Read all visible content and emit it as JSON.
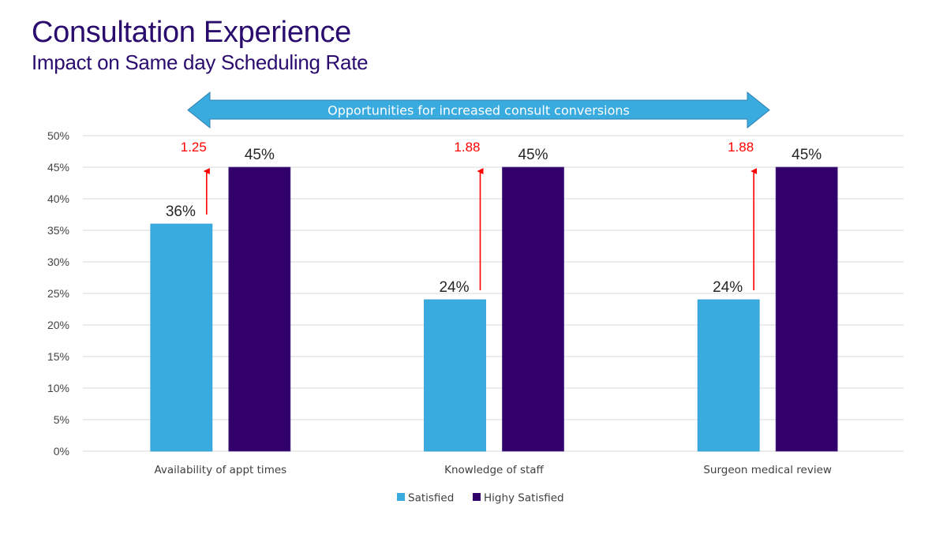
{
  "header": {
    "title": "Consultation Experience",
    "subtitle": "Impact on Same day Scheduling Rate"
  },
  "banner": {
    "label": "Opportunities for increased consult conversions",
    "color": "#3aabde"
  },
  "chart_data": {
    "type": "bar",
    "title": "Consultation Experience",
    "subtitle": "Impact on Same day Scheduling Rate",
    "xlabel": "",
    "ylabel": "",
    "ylim": [
      0,
      50
    ],
    "ytick_step": 5,
    "ytick_labels": [
      "0%",
      "5%",
      "10%",
      "15%",
      "20%",
      "25%",
      "30%",
      "35%",
      "40%",
      "45%",
      "50%"
    ],
    "grid": true,
    "legend_position": "bottom",
    "categories": [
      "Availability of appt times",
      "Knowledge of staff",
      "Surgeon medical review"
    ],
    "series": [
      {
        "name": "Satisfied",
        "color": "#3aabde",
        "values": [
          36,
          24,
          24
        ],
        "labels": [
          "36%",
          "24%",
          "24%"
        ]
      },
      {
        "name": "Highy Satisfied",
        "color": "#32006b",
        "values": [
          45,
          45,
          45
        ],
        "labels": [
          "45%",
          "45%",
          "45%"
        ]
      }
    ],
    "annotations": {
      "type": "ratio-arrows",
      "color": "#ff0000",
      "values": [
        "1.25",
        "1.88",
        "1.88"
      ]
    }
  }
}
